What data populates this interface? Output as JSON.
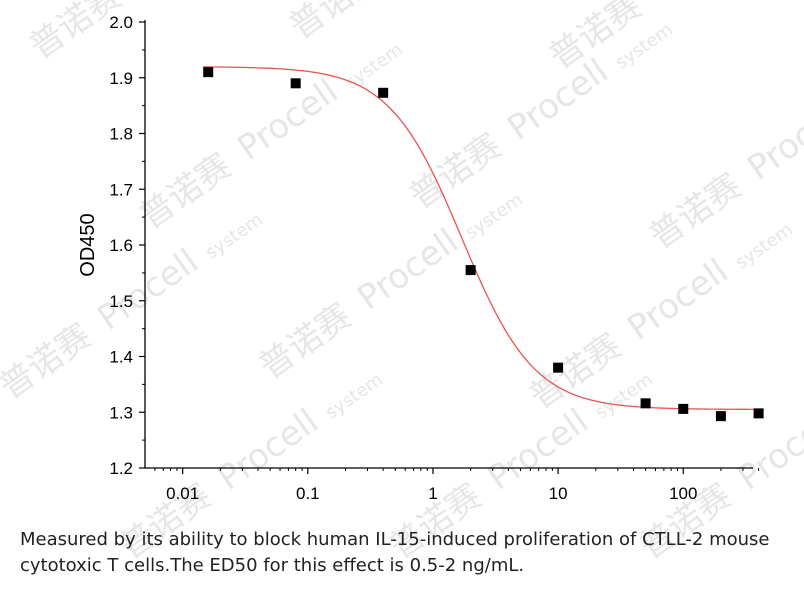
{
  "chart_data": {
    "type": "scatter",
    "x_scale": "log",
    "xlim": [
      0.005,
      450
    ],
    "ylim": [
      1.2,
      2.0
    ],
    "x_ticks": [
      0.01,
      0.1,
      1,
      10,
      100
    ],
    "x_tick_labels": [
      "0.01",
      "0.1",
      "1",
      "10",
      "100"
    ],
    "y_ticks": [
      1.2,
      1.3,
      1.4,
      1.5,
      1.6,
      1.7,
      1.8,
      1.9,
      2.0
    ],
    "y_tick_labels": [
      "1.2",
      "1.3",
      "1.4",
      "1.5",
      "1.6",
      "1.7",
      "1.8",
      "1.9",
      "2.0"
    ],
    "xlabel": "",
    "ylabel": "OD450",
    "title": "",
    "grid": false,
    "points": [
      {
        "x": 0.016,
        "y": 1.91
      },
      {
        "x": 0.08,
        "y": 1.89
      },
      {
        "x": 0.4,
        "y": 1.873
      },
      {
        "x": 2,
        "y": 1.555
      },
      {
        "x": 10,
        "y": 1.38
      },
      {
        "x": 50,
        "y": 1.316
      },
      {
        "x": 100,
        "y": 1.306
      },
      {
        "x": 200,
        "y": 1.293
      },
      {
        "x": 400,
        "y": 1.298
      }
    ],
    "fit": {
      "type": "4PL",
      "top": 1.92,
      "bottom": 1.305,
      "ec50": 1.7,
      "hill": 1.5,
      "color": "#e8554e"
    },
    "marker_color": "#000000"
  },
  "watermark": {
    "brand": "Procell",
    "suffix": "system",
    "cn": "普诺赛"
  },
  "caption": {
    "line1": "Measured by its ability to block human IL-15-induced proliferation of CTLL-2 mouse",
    "line2": "cytotoxic T cells.The ED50 for this effect is 0.5-2 ng/mL."
  }
}
